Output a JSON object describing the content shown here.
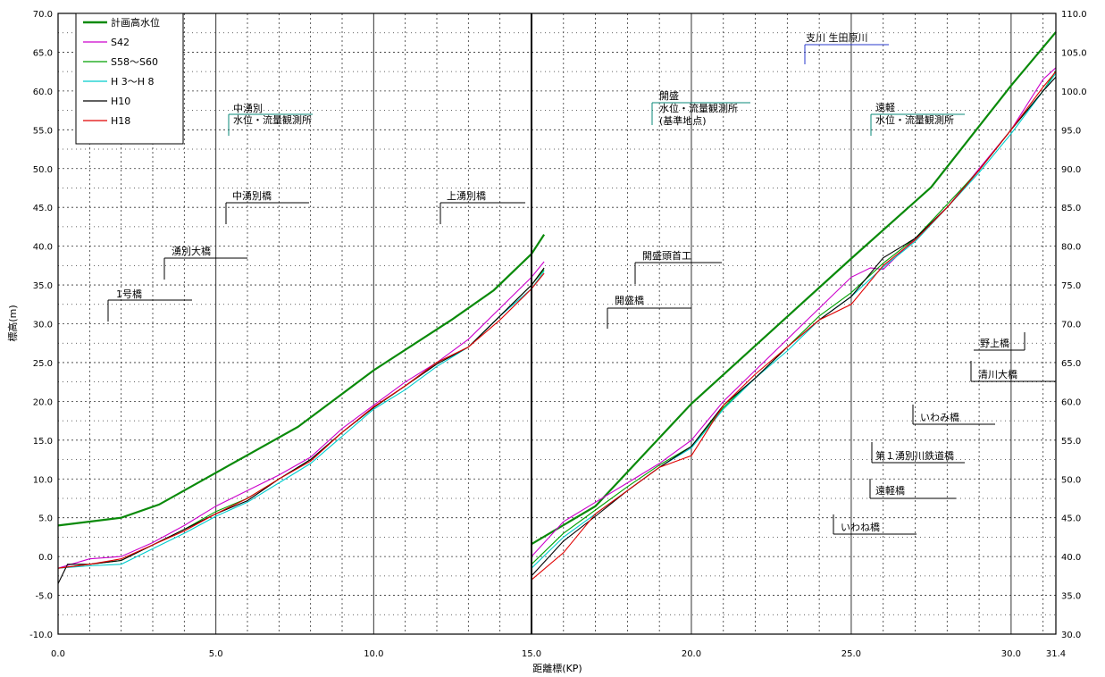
{
  "chart_data": {
    "type": "line",
    "xlabel": "距離標(KP)",
    "ylabel": "標高(m)",
    "x_ticks": [
      "0.0",
      "5.0",
      "10.0",
      "15.0",
      "20.0",
      "25.0",
      "30.0",
      "31.4"
    ],
    "y_left_ticks": [
      "70.0",
      "65.0",
      "60.0",
      "55.0",
      "50.0",
      "45.0",
      "40.0",
      "35.0",
      "30.0",
      "25.0",
      "20.0",
      "15.0",
      "10.0",
      "5.0",
      "0.0",
      "-5.0",
      "-10.0"
    ],
    "y_right_ticks": [
      "110.0",
      "105.0",
      "100.0",
      "95.0",
      "90.0",
      "85.0",
      "80.0",
      "75.0",
      "70.0",
      "65.0",
      "60.0",
      "55.0",
      "50.0",
      "45.0",
      "40.0",
      "35.0",
      "30.0"
    ],
    "ylim_left": [
      -10,
      70
    ],
    "ylim_right": [
      30,
      110
    ],
    "xlim": [
      0,
      31.4
    ],
    "right_axis_applies_from_x": 15.0,
    "grid": true,
    "legend_position": "top-left",
    "series": [
      {
        "name": "計画高水位",
        "color": "#0a8a0a",
        "segments": [
          [
            [
              0,
              4
            ],
            [
              2,
              5
            ],
            [
              3.2,
              6.7
            ],
            [
              5,
              10.8
            ],
            [
              7.6,
              16.7
            ],
            [
              10,
              24
            ],
            [
              12.5,
              30.6
            ],
            [
              13.8,
              34.3
            ],
            [
              15,
              39
            ],
            [
              15.4,
              41.5
            ]
          ],
          [
            [
              15,
              41.6
            ],
            [
              17,
              46.5
            ],
            [
              20,
              59.7
            ],
            [
              25,
              78.4
            ],
            [
              27.5,
              87.6
            ],
            [
              30,
              100.7
            ],
            [
              31.4,
              107.6
            ]
          ]
        ]
      },
      {
        "name": "S42",
        "color": "#cc00cc",
        "segments": [
          [
            [
              0,
              -1.5
            ],
            [
              1,
              -0.3
            ],
            [
              2,
              0
            ],
            [
              3,
              1.8
            ],
            [
              4,
              4
            ],
            [
              5,
              6.5
            ],
            [
              6,
              8.5
            ],
            [
              7,
              10.5
            ],
            [
              8,
              12.8
            ],
            [
              9,
              16.5
            ],
            [
              10,
              19.5
            ],
            [
              11,
              22.5
            ],
            [
              12,
              25
            ],
            [
              13,
              28
            ],
            [
              14,
              32
            ],
            [
              15,
              36
            ],
            [
              15.4,
              38
            ]
          ],
          [
            [
              15,
              40
            ],
            [
              16,
              44.5
            ],
            [
              17,
              47
            ],
            [
              18,
              49.5
            ],
            [
              19,
              52
            ],
            [
              20,
              55
            ],
            [
              21,
              60
            ],
            [
              22,
              64
            ],
            [
              23,
              68
            ],
            [
              24,
              72
            ],
            [
              25,
              76
            ],
            [
              25.6,
              77.2
            ],
            [
              26,
              77
            ],
            [
              27,
              81
            ],
            [
              28,
              85
            ],
            [
              29,
              90
            ],
            [
              30,
              95
            ],
            [
              31,
              101.5
            ],
            [
              31.4,
              103
            ]
          ]
        ]
      },
      {
        "name": "S58〜S60",
        "color": "#00a000",
        "segments": [
          [
            [
              0,
              -1.5
            ],
            [
              1,
              -1
            ],
            [
              2,
              -0.5
            ],
            [
              3,
              1.5
            ],
            [
              4,
              3.5
            ],
            [
              5,
              5.8
            ],
            [
              6,
              7.5
            ],
            [
              7,
              10
            ],
            [
              8,
              12.5
            ],
            [
              9,
              16
            ],
            [
              10,
              19.2
            ],
            [
              11,
              22
            ],
            [
              12,
              25
            ],
            [
              13,
              27
            ],
            [
              14,
              31
            ],
            [
              15,
              35
            ],
            [
              15.4,
              37
            ]
          ],
          [
            [
              15,
              39
            ],
            [
              16,
              43
            ],
            [
              17,
              46
            ],
            [
              18,
              49
            ],
            [
              19,
              51.8
            ],
            [
              20,
              54.2
            ],
            [
              21,
              59.2
            ],
            [
              22,
              63
            ],
            [
              23,
              67
            ],
            [
              24,
              71
            ],
            [
              25,
              74
            ],
            [
              26,
              77.8
            ],
            [
              27,
              81
            ],
            [
              28,
              85.4
            ],
            [
              29,
              89.8
            ],
            [
              30,
              95
            ],
            [
              31,
              100
            ],
            [
              31.4,
              102.6
            ]
          ]
        ]
      },
      {
        "name": "H 3〜H 8",
        "color": "#00cccc",
        "segments": [
          [
            [
              0,
              -1.5
            ],
            [
              1,
              -1.2
            ],
            [
              2,
              -1
            ],
            [
              3,
              1
            ],
            [
              4,
              3
            ],
            [
              5,
              5.2
            ],
            [
              6,
              7
            ],
            [
              7,
              9.5
            ],
            [
              8,
              12
            ],
            [
              9,
              15.5
            ],
            [
              10,
              19
            ],
            [
              11,
              21.5
            ],
            [
              12,
              24.5
            ],
            [
              13,
              27
            ],
            [
              14,
              31
            ],
            [
              15,
              34.5
            ],
            [
              15.4,
              36.8
            ]
          ],
          [
            [
              15,
              38.5
            ],
            [
              16,
              42.5
            ],
            [
              17,
              45.5
            ],
            [
              18,
              48.5
            ],
            [
              19,
              51.5
            ],
            [
              20,
              54
            ],
            [
              21,
              59
            ],
            [
              22,
              63
            ],
            [
              23,
              66.5
            ],
            [
              24,
              70.5
            ],
            [
              25,
              73.5
            ],
            [
              26,
              77.3
            ],
            [
              27,
              80.6
            ],
            [
              28,
              85
            ],
            [
              29,
              89.5
            ],
            [
              30,
              94.5
            ],
            [
              31,
              100
            ],
            [
              31.4,
              102.3
            ]
          ]
        ]
      },
      {
        "name": "H10",
        "color": "#000000",
        "segments": [
          [
            [
              0,
              -3.5
            ],
            [
              0.3,
              -1
            ],
            [
              1,
              -1
            ],
            [
              2,
              -0.5
            ],
            [
              3,
              1.5
            ],
            [
              4,
              3.5
            ],
            [
              5,
              5.5
            ],
            [
              6,
              7.2
            ],
            [
              7,
              10
            ],
            [
              8,
              12.5
            ],
            [
              9,
              16
            ],
            [
              10,
              19.2
            ],
            [
              11,
              22
            ],
            [
              12,
              24.8
            ],
            [
              13,
              27
            ],
            [
              14,
              31
            ],
            [
              15,
              35
            ],
            [
              15.4,
              37.2
            ]
          ],
          [
            [
              15,
              37.5
            ],
            [
              16,
              42
            ],
            [
              17,
              45.2
            ],
            [
              18,
              48.5
            ],
            [
              19,
              51.5
            ],
            [
              20,
              54.2
            ],
            [
              21,
              59.5
            ],
            [
              22,
              63
            ],
            [
              23,
              67
            ],
            [
              24,
              70.5
            ],
            [
              25,
              73.5
            ],
            [
              26,
              78.5
            ],
            [
              27,
              81
            ],
            [
              28,
              85
            ],
            [
              29,
              89.8
            ],
            [
              30,
              95
            ],
            [
              31,
              100
            ],
            [
              31.4,
              101.8
            ]
          ]
        ]
      },
      {
        "name": "H18",
        "color": "#e00000",
        "segments": [
          [
            [
              0,
              -1.5
            ],
            [
              1,
              -1
            ],
            [
              2,
              -0.3
            ],
            [
              3,
              1.5
            ],
            [
              4,
              3.3
            ],
            [
              5,
              5.5
            ],
            [
              6,
              7.5
            ],
            [
              7,
              10
            ],
            [
              8,
              12.3
            ],
            [
              9,
              16
            ],
            [
              10,
              19.3
            ],
            [
              11,
              22
            ],
            [
              12,
              25
            ],
            [
              13,
              27
            ],
            [
              14,
              30.5
            ],
            [
              15,
              34.5
            ],
            [
              15.4,
              36.5
            ]
          ],
          [
            [
              15,
              37
            ],
            [
              16,
              40.5
            ],
            [
              17,
              45.5
            ],
            [
              18,
              48.5
            ],
            [
              19,
              51.5
            ],
            [
              20,
              53
            ],
            [
              21,
              59.5
            ],
            [
              22,
              63.5
            ],
            [
              23,
              67
            ],
            [
              24,
              70.5
            ],
            [
              25,
              72.5
            ],
            [
              26,
              77.5
            ],
            [
              27,
              80.8
            ],
            [
              28,
              85
            ],
            [
              29,
              89.8
            ],
            [
              30,
              95
            ],
            [
              31,
              100.5
            ],
            [
              31.4,
              102.5
            ]
          ]
        ]
      }
    ],
    "annotations": [
      {
        "text": "1号橋"
      },
      {
        "text": "湧別大橋"
      },
      {
        "text": "中湧別橋"
      },
      {
        "text": "中湧別"
      },
      {
        "text": "水位・流量観測所"
      },
      {
        "text": "上湧別橋"
      },
      {
        "text": "開盛橋"
      },
      {
        "text": "開盛頭首工"
      },
      {
        "text": "開盛"
      },
      {
        "text": "水位・流量観測所"
      },
      {
        "text": "(基準地点)"
      },
      {
        "text": "支川 生田原川"
      },
      {
        "text": "遠軽"
      },
      {
        "text": "水位・流量観測所"
      },
      {
        "text": "野上橋"
      },
      {
        "text": "清川大橋"
      },
      {
        "text": "いわみ橋"
      },
      {
        "text": "第１湧別川鉄道橋"
      },
      {
        "text": "遠軽橋"
      },
      {
        "text": "いわね橋"
      }
    ]
  }
}
